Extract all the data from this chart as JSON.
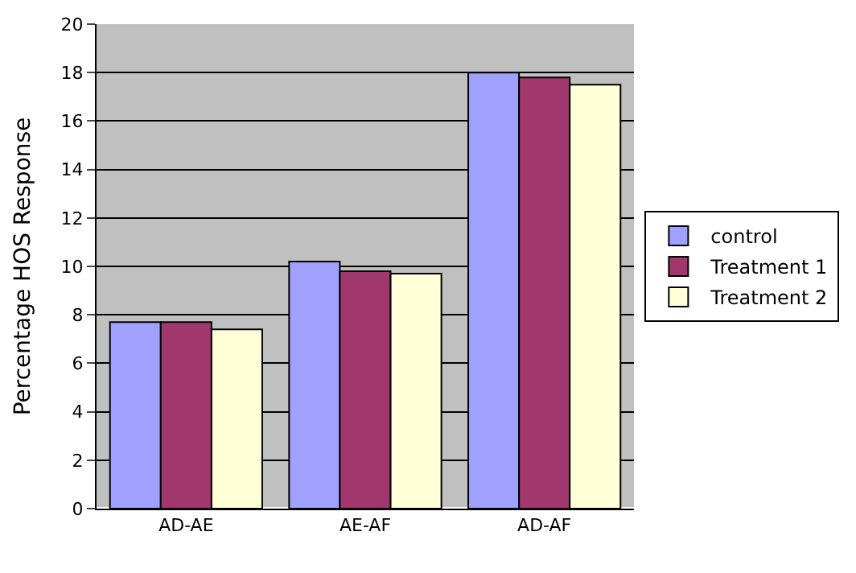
{
  "chart_data": {
    "type": "bar",
    "ylabel": "Percentage HOS Response",
    "categories": [
      "AD-AE",
      "AE-AF",
      "AD-AF"
    ],
    "series": [
      {
        "name": "control",
        "color": "#a0a0ff",
        "values": [
          7.7,
          10.2,
          18.0
        ]
      },
      {
        "name": "Treatment 1",
        "color": "#a0386e",
        "values": [
          7.7,
          9.8,
          17.8
        ]
      },
      {
        "name": "Treatment 2",
        "color": "#ffffd8",
        "values": [
          7.4,
          9.7,
          17.5
        ]
      }
    ],
    "ylim": [
      0,
      20
    ],
    "yticks": [
      0,
      2,
      4,
      6,
      8,
      10,
      12,
      14,
      16,
      18,
      20
    ],
    "grid": "y",
    "legend": "right"
  }
}
